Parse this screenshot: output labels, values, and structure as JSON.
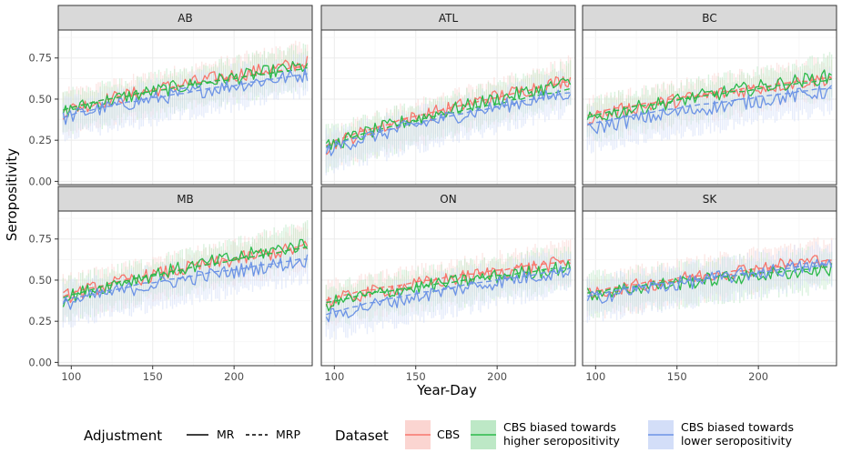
{
  "chart_data": {
    "type": "line",
    "facet_order": [
      "AB",
      "ATL",
      "BC",
      "MB",
      "ON",
      "SK"
    ],
    "xlabel": "Year-Day",
    "ylabel": "Seropositivity",
    "xlim": [
      92,
      248
    ],
    "ylim": [
      -0.02,
      0.92
    ],
    "x_ticks": [
      100,
      150,
      200,
      250
    ],
    "y_ticks": [
      0.0,
      0.25,
      0.5,
      0.75
    ],
    "y_tick_labels": [
      "0.00",
      "0.25",
      "0.50",
      "0.75"
    ],
    "grid": true,
    "legend": {
      "position": "bottom",
      "adjustment_title": "Adjustment",
      "adjustment_items": [
        {
          "label": "MR",
          "linetype": "solid"
        },
        {
          "label": "MRP",
          "linetype": "dashed"
        }
      ],
      "dataset_title": "Dataset",
      "dataset_items": [
        {
          "label_lines": [
            "CBS"
          ],
          "color": "#F8766D",
          "fill": "#FBD5D1"
        },
        {
          "label_lines": [
            "CBS biased towards",
            " higher seropositivity"
          ],
          "color": "#2CB94A",
          "fill": "#BDE8C6"
        },
        {
          "label_lines": [
            "CBS biased towards",
            " lower seropositivity"
          ],
          "color": "#6C93E6",
          "fill": "#D3DEF8"
        }
      ]
    },
    "x": [
      95,
      245
    ],
    "panels": [
      {
        "name": "AB",
        "series": [
          {
            "dataset": "CBS",
            "adjustment": "MR",
            "values": [
              0.42,
              0.72
            ]
          },
          {
            "dataset": "CBS",
            "adjustment": "MRP",
            "values": [
              0.43,
              0.7
            ]
          },
          {
            "dataset": "CBS biased towards higher seropositivity",
            "adjustment": "MR",
            "values": [
              0.42,
              0.7
            ]
          },
          {
            "dataset": "CBS biased towards higher seropositivity",
            "adjustment": "MRP",
            "values": [
              0.43,
              0.69
            ]
          },
          {
            "dataset": "CBS biased towards lower seropositivity",
            "adjustment": "MR",
            "values": [
              0.38,
              0.65
            ]
          },
          {
            "dataset": "CBS biased towards lower seropositivity",
            "adjustment": "MRP",
            "values": [
              0.39,
              0.65
            ]
          }
        ]
      },
      {
        "name": "ATL",
        "series": [
          {
            "dataset": "CBS",
            "adjustment": "MR",
            "values": [
              0.2,
              0.62
            ]
          },
          {
            "dataset": "CBS",
            "adjustment": "MRP",
            "values": [
              0.22,
              0.61
            ]
          },
          {
            "dataset": "CBS biased towards higher seropositivity",
            "adjustment": "MR",
            "values": [
              0.2,
              0.6
            ]
          },
          {
            "dataset": "CBS biased towards higher seropositivity",
            "adjustment": "MRP",
            "values": [
              0.21,
              0.56
            ]
          },
          {
            "dataset": "CBS biased towards lower seropositivity",
            "adjustment": "MR",
            "values": [
              0.18,
              0.54
            ]
          },
          {
            "dataset": "CBS biased towards lower seropositivity",
            "adjustment": "MRP",
            "values": [
              0.2,
              0.54
            ]
          }
        ]
      },
      {
        "name": "BC",
        "series": [
          {
            "dataset": "CBS",
            "adjustment": "MR",
            "values": [
              0.38,
              0.63
            ]
          },
          {
            "dataset": "CBS",
            "adjustment": "MRP",
            "values": [
              0.4,
              0.63
            ]
          },
          {
            "dataset": "CBS biased towards higher seropositivity",
            "adjustment": "MR",
            "values": [
              0.37,
              0.64
            ]
          },
          {
            "dataset": "CBS biased towards higher seropositivity",
            "adjustment": "MRP",
            "values": [
              0.39,
              0.62
            ]
          },
          {
            "dataset": "CBS biased towards lower seropositivity",
            "adjustment": "MR",
            "values": [
              0.31,
              0.55
            ]
          },
          {
            "dataset": "CBS biased towards lower seropositivity",
            "adjustment": "MRP",
            "values": [
              0.34,
              0.57
            ]
          }
        ]
      },
      {
        "name": "MB",
        "series": [
          {
            "dataset": "CBS",
            "adjustment": "MR",
            "values": [
              0.39,
              0.7
            ]
          },
          {
            "dataset": "CBS",
            "adjustment": "MRP",
            "values": [
              0.4,
              0.7
            ]
          },
          {
            "dataset": "CBS biased towards higher seropositivity",
            "adjustment": "MR",
            "values": [
              0.38,
              0.72
            ]
          },
          {
            "dataset": "CBS biased towards higher seropositivity",
            "adjustment": "MRP",
            "values": [
              0.39,
              0.7
            ]
          },
          {
            "dataset": "CBS biased towards lower seropositivity",
            "adjustment": "MR",
            "values": [
              0.35,
              0.62
            ]
          },
          {
            "dataset": "CBS biased towards lower seropositivity",
            "adjustment": "MRP",
            "values": [
              0.37,
              0.63
            ]
          }
        ]
      },
      {
        "name": "ON",
        "series": [
          {
            "dataset": "CBS",
            "adjustment": "MR",
            "values": [
              0.36,
              0.61
            ]
          },
          {
            "dataset": "CBS",
            "adjustment": "MRP",
            "values": [
              0.38,
              0.62
            ]
          },
          {
            "dataset": "CBS biased towards higher seropositivity",
            "adjustment": "MR",
            "values": [
              0.35,
              0.58
            ]
          },
          {
            "dataset": "CBS biased towards higher seropositivity",
            "adjustment": "MRP",
            "values": [
              0.36,
              0.58
            ]
          },
          {
            "dataset": "CBS biased towards lower seropositivity",
            "adjustment": "MR",
            "values": [
              0.27,
              0.56
            ]
          },
          {
            "dataset": "CBS biased towards lower seropositivity",
            "adjustment": "MRP",
            "values": [
              0.29,
              0.57
            ]
          }
        ]
      },
      {
        "name": "SK",
        "series": [
          {
            "dataset": "CBS",
            "adjustment": "MR",
            "values": [
              0.4,
              0.63
            ]
          },
          {
            "dataset": "CBS",
            "adjustment": "MRP",
            "values": [
              0.42,
              0.62
            ]
          },
          {
            "dataset": "CBS biased towards higher seropositivity",
            "adjustment": "MR",
            "values": [
              0.41,
              0.57
            ]
          },
          {
            "dataset": "CBS biased towards higher seropositivity",
            "adjustment": "MRP",
            "values": [
              0.42,
              0.58
            ]
          },
          {
            "dataset": "CBS biased towards lower seropositivity",
            "adjustment": "MR",
            "values": [
              0.38,
              0.6
            ]
          },
          {
            "dataset": "CBS biased towards lower seropositivity",
            "adjustment": "MRP",
            "values": [
              0.4,
              0.6
            ]
          }
        ]
      }
    ]
  }
}
